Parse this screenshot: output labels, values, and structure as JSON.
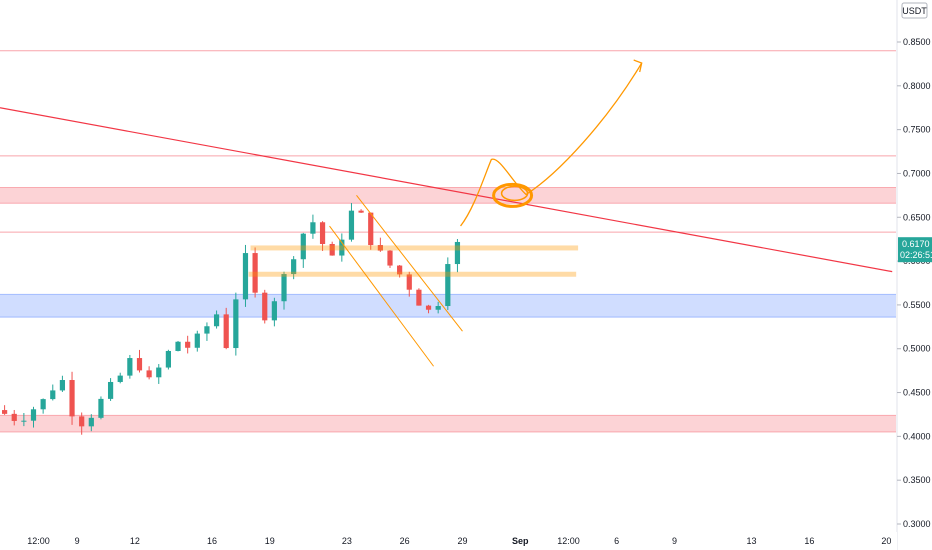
{
  "currency_label": "USDT",
  "chart_data": {
    "type": "candlestick",
    "y_axis": {
      "ticks": [
        "0.8500",
        "0.8000",
        "0.7500",
        "0.7000",
        "0.6500",
        "0.6000",
        "0.5500",
        "0.5000",
        "0.4500",
        "0.4000",
        "0.3500",
        "0.3000"
      ],
      "range": [
        0.29,
        0.86
      ]
    },
    "x_axis": {
      "tick_labels": [
        {
          "label": "12:00",
          "day": 6.0
        },
        {
          "label": "9",
          "day": 8.0
        },
        {
          "label": "12",
          "day": 11.0
        },
        {
          "label": "16",
          "day": 15.0
        },
        {
          "label": "19",
          "day": 18.0
        },
        {
          "label": "23",
          "day": 22.0
        },
        {
          "label": "26",
          "day": 25.0
        },
        {
          "label": "29",
          "day": 28.0
        },
        {
          "label": "Sep",
          "day": 31.0,
          "bold": true
        },
        {
          "label": "12:00",
          "day": 33.5
        },
        {
          "label": "6",
          "day": 36.0
        },
        {
          "label": "9",
          "day": 39.0
        },
        {
          "label": "13",
          "day": 43.0
        },
        {
          "label": "16",
          "day": 46.0
        },
        {
          "label": "20",
          "day": 50.0
        }
      ],
      "range": [
        4.0,
        50.3
      ]
    },
    "last_price": {
      "value": "0.6170",
      "countdown": "02:26:51",
      "color": "#26a69a"
    },
    "colors": {
      "up": "#26a69a",
      "down": "#ef5350",
      "resistance": "#f23645",
      "support": "#2962ff",
      "channel": "#ff9800"
    },
    "anchors": [
      [
        4.0,
        0.43
      ],
      [
        5.2,
        0.42
      ],
      [
        6.5,
        0.44
      ],
      [
        7.4,
        0.47
      ],
      [
        8.0,
        0.43
      ],
      [
        8.6,
        0.415
      ],
      [
        9.5,
        0.44
      ],
      [
        10.2,
        0.46
      ],
      [
        10.9,
        0.48
      ],
      [
        11.3,
        0.5
      ],
      [
        11.8,
        0.455
      ],
      [
        12.6,
        0.48
      ],
      [
        13.4,
        0.51
      ],
      [
        14.2,
        0.5
      ],
      [
        14.8,
        0.52
      ],
      [
        15.5,
        0.54
      ],
      [
        16.0,
        0.505
      ],
      [
        16.5,
        0.56
      ],
      [
        16.9,
        0.61
      ],
      [
        17.5,
        0.56
      ],
      [
        18.0,
        0.54
      ],
      [
        18.8,
        0.57
      ],
      [
        19.5,
        0.61
      ],
      [
        20.4,
        0.65
      ],
      [
        21.0,
        0.62
      ],
      [
        21.5,
        0.6
      ],
      [
        22.0,
        0.63
      ],
      [
        22.5,
        0.655
      ],
      [
        23.0,
        0.65
      ],
      [
        23.6,
        0.62
      ],
      [
        24.2,
        0.6
      ],
      [
        24.8,
        0.59
      ],
      [
        25.4,
        0.575
      ],
      [
        26.0,
        0.555
      ],
      [
        26.6,
        0.54
      ],
      [
        27.0,
        0.555
      ],
      [
        27.4,
        0.6
      ],
      [
        27.8,
        0.618
      ]
    ],
    "horizontal_lines": [
      0.84,
      0.72,
      0.633
    ],
    "zones": [
      {
        "kind": "resistance",
        "top": 0.684,
        "bottom": 0.666
      },
      {
        "kind": "support",
        "top": 0.562,
        "bottom": 0.536
      },
      {
        "kind": "resistance",
        "top": 0.424,
        "bottom": 0.405
      }
    ],
    "orange_levels": [
      {
        "y": 0.615,
        "x0": 17.0,
        "x1": 34.0
      },
      {
        "y": 0.585,
        "x0": 16.9,
        "x1": 33.9
      }
    ],
    "trendline": {
      "x0": 4.0,
      "y0": 0.775,
      "x1": 50.3,
      "y1": 0.588
    },
    "channel": [
      {
        "x0": 22.5,
        "y0": 0.675,
        "x1": 28.0,
        "y1": 0.52
      },
      {
        "x0": 21.1,
        "y0": 0.64,
        "x1": 26.5,
        "y1": 0.48
      }
    ]
  }
}
